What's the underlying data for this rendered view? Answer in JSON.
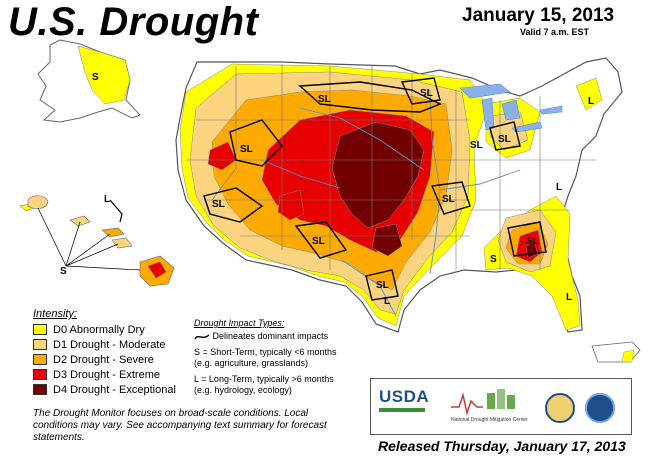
{
  "title": "U.S. Drought",
  "date": "January 15, 2013",
  "valid": "Valid 7 a.m. EST",
  "map_labels": {
    "S": "S",
    "L": "L",
    "SL": "SL"
  },
  "legend": {
    "heading": "Intensity:",
    "items": [
      {
        "label": "D0 Abnormally Dry",
        "color": "#ffff00"
      },
      {
        "label": "D1 Drought - Moderate",
        "color": "#fcd37f"
      },
      {
        "label": "D2 Drought - Severe",
        "color": "#ffaa00"
      },
      {
        "label": "D3 Drought - Extreme",
        "color": "#e60000"
      },
      {
        "label": "D4 Drought - Exceptional",
        "color": "#730000"
      }
    ]
  },
  "impact_types": {
    "heading": "Drought Impact Types:",
    "line_key": "Delineates dominant impacts",
    "short_term": "S = Short-Term, typically <6 months",
    "short_term_eg": "(e.g. agriculture, grasslands)",
    "long_term": "L = Long-Term, typically >6 months",
    "long_term_eg": "(e.g. hydrology, ecology)"
  },
  "note": "The Drought Monitor focuses on broad-scale conditions. Local conditions may vary. See accompanying text summary for forecast statements.",
  "logos": {
    "usda": "USDA",
    "ndmc": "National Drought Mitigation Center"
  },
  "released": "Released Thursday, January 17, 2013"
}
